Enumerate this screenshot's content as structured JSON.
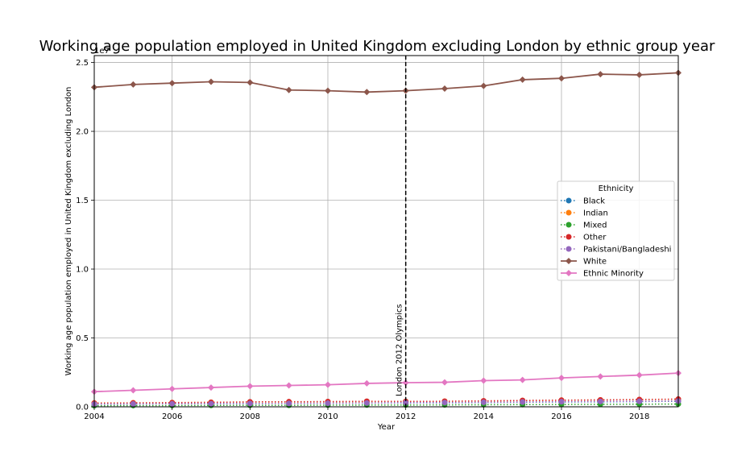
{
  "chart_data": {
    "type": "line",
    "title": "Working age population employed in United Kingdom excluding London by ethnic group year",
    "xlabel": "Year",
    "ylabel": "Working age population employed in United Kingdom excluding London",
    "y_multiplier": "1e7",
    "xlim": [
      2004,
      2019
    ],
    "ylim": [
      0,
      2.55
    ],
    "x_ticks": [
      2004,
      2006,
      2008,
      2010,
      2012,
      2014,
      2016,
      2018
    ],
    "y_ticks": [
      0.0,
      0.5,
      1.0,
      1.5,
      2.0,
      2.5
    ],
    "grid": true,
    "legend": {
      "title": "Ethnicity",
      "placement": "center-right"
    },
    "annotation": {
      "x": 2012,
      "text": "London 2012 Olympics",
      "style": "dashed-vertical-line"
    },
    "x": [
      2004,
      2005,
      2006,
      2007,
      2008,
      2009,
      2010,
      2011,
      2012,
      2013,
      2014,
      2015,
      2016,
      2017,
      2018,
      2019
    ],
    "series": [
      {
        "name": "Black",
        "color": "#1f77b4",
        "style": "dotted",
        "marker": "circle",
        "values": [
          0.02,
          0.021,
          0.022,
          0.023,
          0.024,
          0.025,
          0.026,
          0.027,
          0.028,
          0.029,
          0.031,
          0.033,
          0.035,
          0.036,
          0.038,
          0.04
        ]
      },
      {
        "name": "Indian",
        "color": "#ff7f0e",
        "style": "dotted",
        "marker": "circle",
        "values": [
          0.028,
          0.029,
          0.031,
          0.033,
          0.035,
          0.035,
          0.036,
          0.038,
          0.039,
          0.04,
          0.042,
          0.045,
          0.048,
          0.05,
          0.052,
          0.055
        ]
      },
      {
        "name": "Mixed",
        "color": "#2ca02c",
        "style": "dotted",
        "marker": "circle",
        "values": [
          0.008,
          0.009,
          0.009,
          0.01,
          0.011,
          0.011,
          0.012,
          0.013,
          0.013,
          0.014,
          0.015,
          0.016,
          0.017,
          0.018,
          0.019,
          0.02
        ]
      },
      {
        "name": "Other",
        "color": "#d62728",
        "style": "dotted",
        "marker": "circle",
        "values": [
          0.026,
          0.028,
          0.03,
          0.032,
          0.036,
          0.037,
          0.038,
          0.04,
          0.039,
          0.04,
          0.043,
          0.046,
          0.048,
          0.05,
          0.053,
          0.056
        ]
      },
      {
        "name": "Pakistani/Bangladeshi",
        "color": "#9467bd",
        "style": "dotted",
        "marker": "circle",
        "values": [
          0.02,
          0.021,
          0.022,
          0.023,
          0.024,
          0.025,
          0.026,
          0.028,
          0.03,
          0.031,
          0.033,
          0.035,
          0.037,
          0.039,
          0.04,
          0.042
        ]
      },
      {
        "name": "White",
        "color": "#8c564b",
        "style": "solid",
        "marker": "diamond",
        "values": [
          2.32,
          2.34,
          2.35,
          2.36,
          2.355,
          2.3,
          2.295,
          2.285,
          2.295,
          2.31,
          2.33,
          2.375,
          2.385,
          2.415,
          2.41,
          2.425
        ]
      },
      {
        "name": "Ethnic Minority",
        "color": "#e377c2",
        "style": "solid",
        "marker": "diamond",
        "values": [
          0.11,
          0.12,
          0.13,
          0.14,
          0.15,
          0.155,
          0.16,
          0.17,
          0.175,
          0.178,
          0.19,
          0.195,
          0.21,
          0.22,
          0.23,
          0.245
        ]
      }
    ]
  }
}
